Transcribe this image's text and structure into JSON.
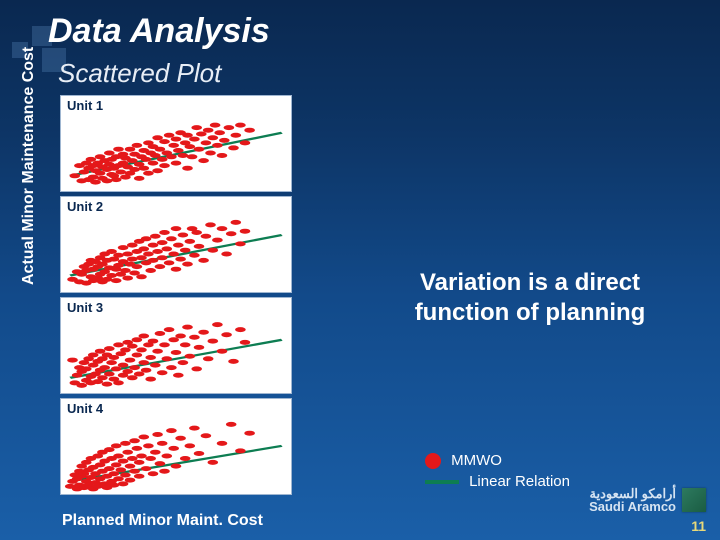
{
  "slide": {
    "title": "Data Analysis",
    "subtitle": "Scattered Plot",
    "background_gradient": [
      "#0a2850",
      "#0d3566",
      "#124a8a",
      "#1a5fa8"
    ],
    "page_number": "11",
    "brand": {
      "line1": "أرامكو السعودية",
      "line2": "Saudi Aramco"
    }
  },
  "axes": {
    "ylabel": "Actual Minor Maintenance Cost",
    "xlabel": "Planned Minor Maint. Cost"
  },
  "callout": "Variation is a direct function of planning",
  "legend": {
    "items": [
      {
        "label": "MMWO",
        "swatch": "dot",
        "color": "#e4181a"
      },
      {
        "label": "Linear Relation",
        "swatch": "line",
        "color": "#0d7d52"
      }
    ]
  },
  "style": {
    "point_color": "#e4181a",
    "point_radius": 2.3,
    "line_color": "#0d7d52",
    "line_width": 2,
    "plot_bg": "#ffffff",
    "plot_border": "#9fb6d1",
    "title_color": "#0a2850",
    "title_fontsize": 13,
    "xlim": [
      0,
      100
    ],
    "ylim": [
      0,
      60
    ],
    "svg_viewbox_h": 70
  },
  "plots": [
    {
      "title": "Unit 1",
      "line": {
        "x1": 4,
        "y1": 12,
        "x2": 96,
        "y2": 46
      },
      "points": [
        [
          6,
          12
        ],
        [
          8,
          20
        ],
        [
          9,
          8
        ],
        [
          10,
          15
        ],
        [
          11,
          22
        ],
        [
          12,
          9
        ],
        [
          12,
          18
        ],
        [
          13,
          25
        ],
        [
          14,
          11
        ],
        [
          14,
          20
        ],
        [
          15,
          7
        ],
        [
          15,
          16
        ],
        [
          16,
          22
        ],
        [
          17,
          14
        ],
        [
          17,
          27
        ],
        [
          18,
          10
        ],
        [
          18,
          19
        ],
        [
          19,
          24
        ],
        [
          20,
          8
        ],
        [
          20,
          17
        ],
        [
          21,
          21
        ],
        [
          21,
          30
        ],
        [
          22,
          13
        ],
        [
          22,
          25
        ],
        [
          23,
          18
        ],
        [
          23,
          12
        ],
        [
          24,
          27
        ],
        [
          24,
          9
        ],
        [
          25,
          20
        ],
        [
          25,
          33
        ],
        [
          26,
          15
        ],
        [
          27,
          22
        ],
        [
          27,
          29
        ],
        [
          28,
          11
        ],
        [
          28,
          26
        ],
        [
          29,
          19
        ],
        [
          30,
          33
        ],
        [
          30,
          14
        ],
        [
          31,
          24
        ],
        [
          32,
          17
        ],
        [
          32,
          29
        ],
        [
          33,
          36
        ],
        [
          34,
          21
        ],
        [
          34,
          10
        ],
        [
          35,
          27
        ],
        [
          36,
          32
        ],
        [
          36,
          18
        ],
        [
          37,
          25
        ],
        [
          38,
          38
        ],
        [
          38,
          14
        ],
        [
          39,
          30
        ],
        [
          40,
          22
        ],
        [
          40,
          35
        ],
        [
          41,
          28
        ],
        [
          42,
          16
        ],
        [
          42,
          42
        ],
        [
          43,
          33
        ],
        [
          44,
          25
        ],
        [
          45,
          39
        ],
        [
          45,
          20
        ],
        [
          46,
          30
        ],
        [
          47,
          44
        ],
        [
          48,
          27
        ],
        [
          49,
          36
        ],
        [
          50,
          22
        ],
        [
          50,
          41
        ],
        [
          51,
          32
        ],
        [
          52,
          46
        ],
        [
          53,
          28
        ],
        [
          54,
          38
        ],
        [
          55,
          18
        ],
        [
          55,
          44
        ],
        [
          56,
          35
        ],
        [
          57,
          27
        ],
        [
          58,
          41
        ],
        [
          59,
          50
        ],
        [
          60,
          33
        ],
        [
          61,
          45
        ],
        [
          62,
          24
        ],
        [
          63,
          38
        ],
        [
          64,
          48
        ],
        [
          65,
          30
        ],
        [
          66,
          42
        ],
        [
          67,
          52
        ],
        [
          68,
          36
        ],
        [
          69,
          46
        ],
        [
          70,
          28
        ],
        [
          71,
          40
        ],
        [
          73,
          50
        ],
        [
          75,
          34
        ],
        [
          76,
          44
        ],
        [
          78,
          52
        ],
        [
          80,
          38
        ],
        [
          82,
          48
        ]
      ]
    },
    {
      "title": "Unit 2",
      "line": {
        "x1": 4,
        "y1": 13,
        "x2": 96,
        "y2": 45
      },
      "points": [
        [
          5,
          10
        ],
        [
          7,
          16
        ],
        [
          8,
          8
        ],
        [
          9,
          14
        ],
        [
          10,
          20
        ],
        [
          11,
          7
        ],
        [
          11,
          17
        ],
        [
          12,
          22
        ],
        [
          13,
          12
        ],
        [
          13,
          25
        ],
        [
          14,
          9
        ],
        [
          14,
          18
        ],
        [
          15,
          24
        ],
        [
          16,
          11
        ],
        [
          16,
          20
        ],
        [
          17,
          27
        ],
        [
          17,
          14
        ],
        [
          18,
          8
        ],
        [
          18,
          22
        ],
        [
          19,
          16
        ],
        [
          19,
          30
        ],
        [
          20,
          10
        ],
        [
          20,
          25
        ],
        [
          21,
          19
        ],
        [
          22,
          32
        ],
        [
          22,
          13
        ],
        [
          23,
          26
        ],
        [
          24,
          18
        ],
        [
          24,
          9
        ],
        [
          25,
          29
        ],
        [
          25,
          21
        ],
        [
          26,
          14
        ],
        [
          27,
          35
        ],
        [
          27,
          24
        ],
        [
          28,
          17
        ],
        [
          29,
          30
        ],
        [
          29,
          11
        ],
        [
          30,
          22
        ],
        [
          31,
          37
        ],
        [
          31,
          26
        ],
        [
          32,
          15
        ],
        [
          33,
          32
        ],
        [
          33,
          20
        ],
        [
          34,
          40
        ],
        [
          35,
          27
        ],
        [
          35,
          12
        ],
        [
          36,
          34
        ],
        [
          37,
          23
        ],
        [
          37,
          42
        ],
        [
          38,
          30
        ],
        [
          39,
          17
        ],
        [
          40,
          37
        ],
        [
          40,
          25
        ],
        [
          41,
          44
        ],
        [
          42,
          32
        ],
        [
          43,
          20
        ],
        [
          44,
          39
        ],
        [
          44,
          27
        ],
        [
          45,
          47
        ],
        [
          46,
          34
        ],
        [
          47,
          23
        ],
        [
          48,
          42
        ],
        [
          49,
          30
        ],
        [
          50,
          50
        ],
        [
          50,
          18
        ],
        [
          51,
          37
        ],
        [
          52,
          26
        ],
        [
          53,
          45
        ],
        [
          54,
          33
        ],
        [
          55,
          22
        ],
        [
          56,
          40
        ],
        [
          57,
          50
        ],
        [
          58,
          29
        ],
        [
          59,
          47
        ],
        [
          60,
          36
        ],
        [
          62,
          25
        ],
        [
          63,
          44
        ],
        [
          65,
          53
        ],
        [
          66,
          33
        ],
        [
          68,
          41
        ],
        [
          70,
          50
        ],
        [
          72,
          30
        ],
        [
          74,
          46
        ],
        [
          76,
          55
        ],
        [
          78,
          38
        ],
        [
          80,
          48
        ]
      ]
    },
    {
      "title": "Unit 3",
      "line": {
        "x1": 4,
        "y1": 12,
        "x2": 96,
        "y2": 42
      },
      "points": [
        [
          5,
          26
        ],
        [
          6,
          8
        ],
        [
          7,
          14
        ],
        [
          8,
          20
        ],
        [
          9,
          6
        ],
        [
          9,
          17
        ],
        [
          10,
          24
        ],
        [
          11,
          10
        ],
        [
          11,
          19
        ],
        [
          12,
          27
        ],
        [
          13,
          13
        ],
        [
          13,
          8
        ],
        [
          14,
          22
        ],
        [
          14,
          30
        ],
        [
          15,
          15
        ],
        [
          16,
          9
        ],
        [
          16,
          25
        ],
        [
          17,
          18
        ],
        [
          17,
          33
        ],
        [
          18,
          12
        ],
        [
          18,
          27
        ],
        [
          19,
          20
        ],
        [
          20,
          7
        ],
        [
          20,
          30
        ],
        [
          21,
          15
        ],
        [
          21,
          35
        ],
        [
          22,
          24
        ],
        [
          23,
          11
        ],
        [
          23,
          28
        ],
        [
          24,
          19
        ],
        [
          25,
          38
        ],
        [
          25,
          8
        ],
        [
          26,
          31
        ],
        [
          27,
          22
        ],
        [
          27,
          14
        ],
        [
          28,
          34
        ],
        [
          29,
          17
        ],
        [
          29,
          40
        ],
        [
          30,
          26
        ],
        [
          31,
          12
        ],
        [
          31,
          37
        ],
        [
          32,
          20
        ],
        [
          33,
          30
        ],
        [
          33,
          42
        ],
        [
          34,
          15
        ],
        [
          35,
          34
        ],
        [
          36,
          24
        ],
        [
          36,
          45
        ],
        [
          37,
          18
        ],
        [
          38,
          38
        ],
        [
          39,
          28
        ],
        [
          39,
          11
        ],
        [
          40,
          41
        ],
        [
          41,
          22
        ],
        [
          42,
          33
        ],
        [
          43,
          47
        ],
        [
          44,
          16
        ],
        [
          45,
          38
        ],
        [
          46,
          27
        ],
        [
          47,
          50
        ],
        [
          48,
          20
        ],
        [
          49,
          42
        ],
        [
          50,
          32
        ],
        [
          51,
          14
        ],
        [
          52,
          45
        ],
        [
          53,
          24
        ],
        [
          54,
          38
        ],
        [
          55,
          52
        ],
        [
          56,
          29
        ],
        [
          58,
          44
        ],
        [
          59,
          19
        ],
        [
          60,
          36
        ],
        [
          62,
          48
        ],
        [
          64,
          27
        ],
        [
          66,
          41
        ],
        [
          68,
          54
        ],
        [
          70,
          33
        ],
        [
          72,
          46
        ],
        [
          75,
          25
        ],
        [
          78,
          50
        ],
        [
          80,
          40
        ]
      ]
    },
    {
      "title": "Unit 4",
      "line": {
        "x1": 4,
        "y1": 10,
        "x2": 96,
        "y2": 38
      },
      "points": [
        [
          4,
          6
        ],
        [
          5,
          10
        ],
        [
          6,
          15
        ],
        [
          7,
          4
        ],
        [
          7,
          12
        ],
        [
          8,
          18
        ],
        [
          8,
          7
        ],
        [
          9,
          14
        ],
        [
          9,
          22
        ],
        [
          10,
          5
        ],
        [
          10,
          16
        ],
        [
          11,
          10
        ],
        [
          11,
          25
        ],
        [
          12,
          7
        ],
        [
          12,
          19
        ],
        [
          13,
          13
        ],
        [
          13,
          28
        ],
        [
          14,
          4
        ],
        [
          14,
          21
        ],
        [
          15,
          9
        ],
        [
          15,
          16
        ],
        [
          16,
          30
        ],
        [
          16,
          6
        ],
        [
          17,
          23
        ],
        [
          17,
          12
        ],
        [
          18,
          18
        ],
        [
          18,
          33
        ],
        [
          19,
          8
        ],
        [
          19,
          26
        ],
        [
          20,
          14
        ],
        [
          20,
          5
        ],
        [
          21,
          20
        ],
        [
          21,
          35
        ],
        [
          22,
          10
        ],
        [
          22,
          28
        ],
        [
          23,
          16
        ],
        [
          23,
          7
        ],
        [
          24,
          23
        ],
        [
          24,
          38
        ],
        [
          25,
          12
        ],
        [
          25,
          30
        ],
        [
          26,
          19
        ],
        [
          27,
          8
        ],
        [
          27,
          26
        ],
        [
          28,
          15
        ],
        [
          28,
          40
        ],
        [
          29,
          33
        ],
        [
          30,
          22
        ],
        [
          30,
          11
        ],
        [
          31,
          28
        ],
        [
          32,
          18
        ],
        [
          32,
          42
        ],
        [
          33,
          36
        ],
        [
          34,
          14
        ],
        [
          34,
          25
        ],
        [
          35,
          30
        ],
        [
          36,
          45
        ],
        [
          37,
          20
        ],
        [
          38,
          38
        ],
        [
          39,
          28
        ],
        [
          40,
          16
        ],
        [
          41,
          33
        ],
        [
          42,
          47
        ],
        [
          43,
          24
        ],
        [
          44,
          40
        ],
        [
          45,
          18
        ],
        [
          46,
          30
        ],
        [
          48,
          50
        ],
        [
          49,
          36
        ],
        [
          50,
          22
        ],
        [
          52,
          44
        ],
        [
          54,
          28
        ],
        [
          56,
          38
        ],
        [
          58,
          52
        ],
        [
          60,
          32
        ],
        [
          63,
          46
        ],
        [
          66,
          25
        ],
        [
          70,
          40
        ],
        [
          74,
          55
        ],
        [
          78,
          34
        ],
        [
          82,
          48
        ]
      ]
    }
  ]
}
